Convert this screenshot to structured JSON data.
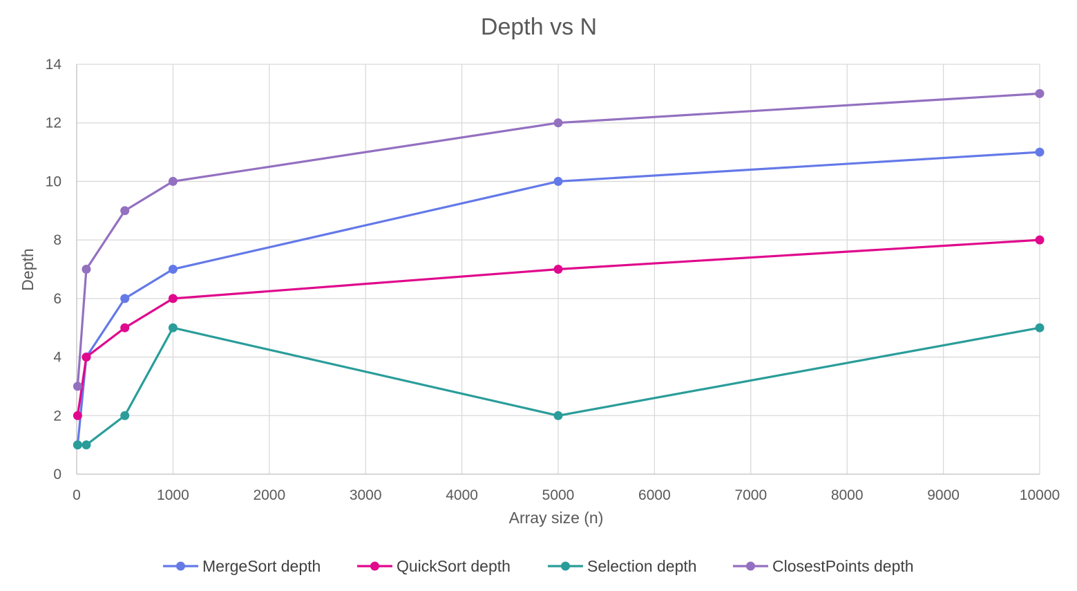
{
  "chart_data": {
    "type": "line",
    "title": "Depth vs N",
    "xlabel": "Array size (n)",
    "ylabel": "Depth",
    "xlim": [
      0,
      10000
    ],
    "ylim": [
      0,
      14
    ],
    "x_ticks": [
      0,
      1000,
      2000,
      3000,
      4000,
      5000,
      6000,
      7000,
      8000,
      9000,
      10000
    ],
    "y_ticks": [
      0,
      2,
      4,
      6,
      8,
      10,
      12,
      14
    ],
    "grid": true,
    "legend_position": "bottom",
    "x": [
      10,
      100,
      500,
      1000,
      5000,
      10000
    ],
    "series": [
      {
        "name": "MergeSort depth",
        "color": "#6479e8",
        "values": [
          1,
          4,
          6,
          7,
          10,
          11
        ]
      },
      {
        "name": "QuickSort depth",
        "color": "#e0088c",
        "values": [
          2,
          4,
          5,
          6,
          7,
          8
        ]
      },
      {
        "name": "Selection depth",
        "color": "#2a9d9a",
        "values": [
          1,
          1,
          2,
          5,
          2,
          5
        ]
      },
      {
        "name": "ClosestPoints depth",
        "color": "#9370c0",
        "values": [
          3,
          7,
          9,
          10,
          12,
          13
        ]
      }
    ]
  }
}
